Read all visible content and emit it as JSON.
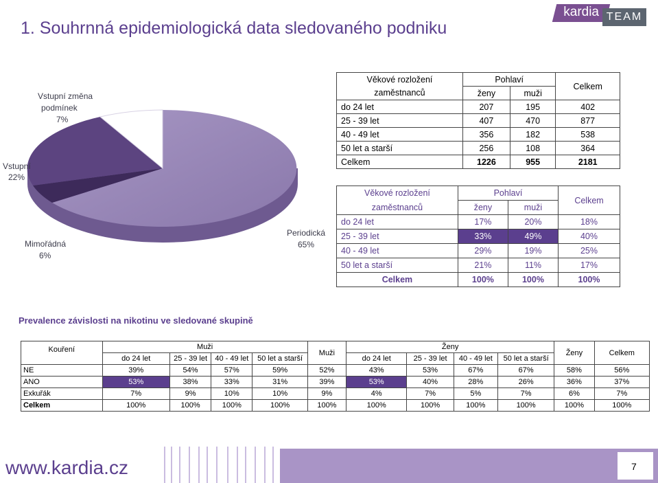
{
  "title": "1. Souhrnná epidemiologická data sledovaného podniku",
  "logo": {
    "brand": "kardia",
    "team": "TEAM"
  },
  "pie": {
    "slices": [
      {
        "label": "Periodická",
        "value": "65%"
      },
      {
        "label": "Mimořádná",
        "value": "6%"
      },
      {
        "label": "Vstupní",
        "value": "22%"
      },
      {
        "label_line1": "Vstupní změna",
        "label_line2": "podmínek",
        "value": "7%"
      }
    ]
  },
  "table1": {
    "h_age1": "Věkové rozložení",
    "h_age2": "zaměstnanců",
    "h_sex": "Pohlaví",
    "h_f": "ženy",
    "h_m": "muži",
    "h_total": "Celkem",
    "rows": [
      {
        "label": "do 24 let",
        "f": "207",
        "m": "195",
        "t": "402"
      },
      {
        "label": "25 - 39 let",
        "f": "407",
        "m": "470",
        "t": "877"
      },
      {
        "label": "40 - 49 let",
        "f": "356",
        "m": "182",
        "t": "538"
      },
      {
        "label": "50 let a starší",
        "f": "256",
        "m": "108",
        "t": "364"
      },
      {
        "label": "Celkem",
        "f": "1226",
        "m": "955",
        "t": "2181"
      }
    ]
  },
  "table2": {
    "h_age1": "Věkové rozložení",
    "h_age2": "zaměstnanců",
    "h_sex": "Pohlaví",
    "h_f": "ženy",
    "h_m": "muži",
    "h_total": "Celkem",
    "rows": [
      {
        "label": "do 24 let",
        "f": "17%",
        "m": "20%",
        "t": "18%"
      },
      {
        "label": "25 - 39 let",
        "f": "33%",
        "m": "49%",
        "t": "40%"
      },
      {
        "label": "40 - 49 let",
        "f": "29%",
        "m": "19%",
        "t": "25%"
      },
      {
        "label": "50 let a starší",
        "f": "21%",
        "m": "11%",
        "t": "17%"
      },
      {
        "label": "Celkem",
        "f": "100%",
        "m": "100%",
        "t": "100%"
      }
    ]
  },
  "section_title": "Prevalence závislosti na nikotinu ve sledované skupině",
  "table3": {
    "h_smoking": "Kouření",
    "h_men": "Muži",
    "h_men_total": "Muži",
    "h_women": "Ženy",
    "h_women_total": "Ženy",
    "h_total": "Celkem",
    "age_groups": [
      "do 24 let",
      "25 - 39 let",
      "40 - 49 let",
      "50 let a starší"
    ],
    "rows": [
      {
        "label": "NE",
        "m": [
          "39%",
          "54%",
          "57%",
          "59%"
        ],
        "mt": "52%",
        "w": [
          "43%",
          "53%",
          "67%",
          "67%"
        ],
        "wt": "58%",
        "t": "56%"
      },
      {
        "label": "ANO",
        "m": [
          "53%",
          "38%",
          "33%",
          "31%"
        ],
        "mt": "39%",
        "w": [
          "53%",
          "40%",
          "28%",
          "26%"
        ],
        "wt": "36%",
        "t": "37%"
      },
      {
        "label": "Exkuřák",
        "m": [
          "7%",
          "9%",
          "10%",
          "10%"
        ],
        "mt": "9%",
        "w": [
          "4%",
          "7%",
          "5%",
          "7%"
        ],
        "wt": "6%",
        "t": "7%"
      },
      {
        "label": "Celkem",
        "m": [
          "100%",
          "100%",
          "100%",
          "100%"
        ],
        "mt": "100%",
        "w": [
          "100%",
          "100%",
          "100%",
          "100%"
        ],
        "wt": "100%",
        "t": "100%"
      }
    ]
  },
  "footer": {
    "url": "www.kardia.cz",
    "page": "7"
  },
  "colors": {
    "accent": "#5b3f8e",
    "pie_main": "#9585b3",
    "pie_dark": "#4a2f6e",
    "pie_mid": "#6b5091",
    "pie_light": "#ffffff"
  }
}
